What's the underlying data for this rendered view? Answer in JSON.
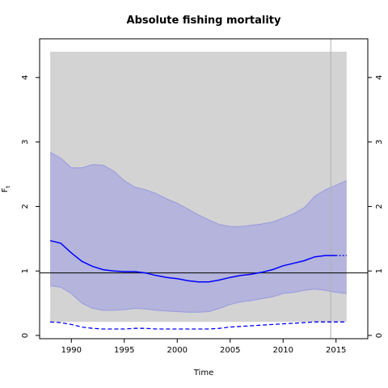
{
  "chart_data": {
    "type": "line",
    "title": "Absolute fishing mortality",
    "xlabel": "Time",
    "ylabel": "F",
    "ylabel_sub": "t",
    "xlim": [
      1987,
      2018
    ],
    "ylim": [
      -0.05,
      4.6
    ],
    "x_ticks": [
      1990,
      1995,
      2000,
      2005,
      2010,
      2015
    ],
    "y_ticks_left": [
      0,
      1,
      2,
      3,
      4
    ],
    "y_ticks_right": [
      0,
      1,
      2,
      3,
      4
    ],
    "grey_region": {
      "x": [
        1988,
        2016
      ],
      "y": [
        0.21,
        4.4
      ]
    },
    "reference_line": {
      "y": 0.97,
      "color": "#000000"
    },
    "vertical_line": {
      "x": 2014.5,
      "color": "#b0b0b0"
    },
    "colors": {
      "line": "#0000ff",
      "ci_fill": "#b4b4dc",
      "ci_border": "#9a9ae0",
      "grey": "#d3d3d3"
    },
    "series": [
      {
        "role": "median",
        "x": [
          1988,
          1989,
          1990,
          1991,
          1992,
          1993,
          1994,
          1995,
          1996,
          1997,
          1998,
          1999,
          2000,
          2001,
          2002,
          2003,
          2004,
          2005,
          2006,
          2007,
          2008,
          2009,
          2010,
          2011,
          2012,
          2013,
          2014,
          2015
        ],
        "y": [
          1.47,
          1.43,
          1.28,
          1.15,
          1.07,
          1.02,
          1.0,
          0.99,
          0.99,
          0.97,
          0.93,
          0.9,
          0.88,
          0.85,
          0.83,
          0.83,
          0.86,
          0.9,
          0.93,
          0.95,
          0.98,
          1.02,
          1.08,
          1.12,
          1.16,
          1.22,
          1.24,
          1.24
        ]
      },
      {
        "role": "forecast",
        "x": [
          2015,
          2016
        ],
        "y": [
          1.24,
          1.24
        ]
      },
      {
        "role": "ci_upper",
        "x": [
          1988,
          1989,
          1990,
          1991,
          1992,
          1993,
          1994,
          1995,
          1996,
          1997,
          1998,
          1999,
          2000,
          2001,
          2002,
          2003,
          2004,
          2005,
          2006,
          2007,
          2008,
          2009,
          2010,
          2011,
          2012,
          2013,
          2014,
          2015,
          2016
        ],
        "y": [
          2.84,
          2.75,
          2.6,
          2.6,
          2.65,
          2.64,
          2.55,
          2.4,
          2.3,
          2.26,
          2.2,
          2.12,
          2.05,
          1.96,
          1.87,
          1.79,
          1.72,
          1.69,
          1.69,
          1.71,
          1.73,
          1.76,
          1.82,
          1.89,
          1.98,
          2.16,
          2.26,
          2.33,
          2.4
        ]
      },
      {
        "role": "ci_lower",
        "x": [
          1988,
          1989,
          1990,
          1991,
          1992,
          1993,
          1994,
          1995,
          1996,
          1997,
          1998,
          1999,
          2000,
          2001,
          2002,
          2003,
          2004,
          2005,
          2006,
          2007,
          2008,
          2009,
          2010,
          2011,
          2012,
          2013,
          2014,
          2015,
          2016
        ],
        "y": [
          0.77,
          0.75,
          0.65,
          0.5,
          0.42,
          0.39,
          0.39,
          0.4,
          0.42,
          0.41,
          0.39,
          0.38,
          0.37,
          0.36,
          0.36,
          0.37,
          0.42,
          0.48,
          0.52,
          0.54,
          0.57,
          0.6,
          0.65,
          0.67,
          0.7,
          0.72,
          0.7,
          0.67,
          0.65
        ]
      },
      {
        "role": "lower_dashed",
        "x": [
          1988,
          1989,
          1990,
          1991,
          1992,
          1993,
          1994,
          1995,
          1996,
          1997,
          1998,
          1999,
          2000,
          2001,
          2002,
          2003,
          2004,
          2005,
          2006,
          2007,
          2008,
          2009,
          2010,
          2011,
          2012,
          2013,
          2014,
          2015,
          2016
        ],
        "y": [
          0.21,
          0.2,
          0.17,
          0.13,
          0.11,
          0.1,
          0.1,
          0.1,
          0.11,
          0.11,
          0.1,
          0.1,
          0.1,
          0.1,
          0.1,
          0.1,
          0.11,
          0.13,
          0.14,
          0.15,
          0.16,
          0.17,
          0.18,
          0.19,
          0.2,
          0.21,
          0.21,
          0.21,
          0.21
        ]
      }
    ]
  }
}
